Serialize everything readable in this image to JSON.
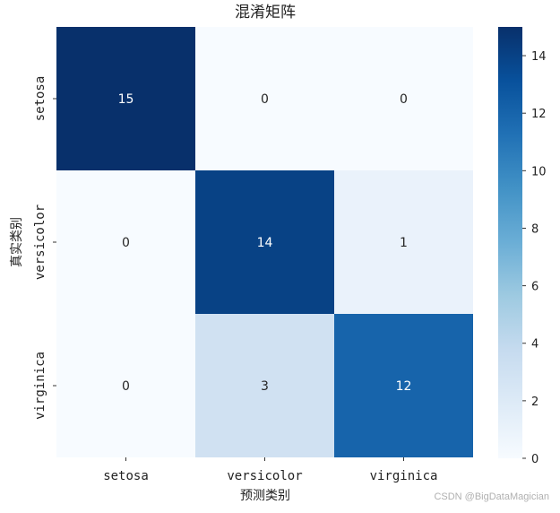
{
  "chart_data": {
    "type": "heatmap",
    "title": "混淆矩阵",
    "xlabel": "预测类别",
    "ylabel": "真实类别",
    "x_categories": [
      "setosa",
      "versicolor",
      "virginica"
    ],
    "y_categories": [
      "setosa",
      "versicolor",
      "virginica"
    ],
    "values": [
      [
        15,
        0,
        0
      ],
      [
        0,
        14,
        1
      ],
      [
        0,
        3,
        12
      ]
    ],
    "colormap": "Blues",
    "colorbar": {
      "min": 0,
      "max": 15,
      "ticks": [
        0,
        2,
        4,
        6,
        8,
        10,
        12,
        14
      ]
    }
  },
  "watermark": "CSDN @BigDataMagician"
}
